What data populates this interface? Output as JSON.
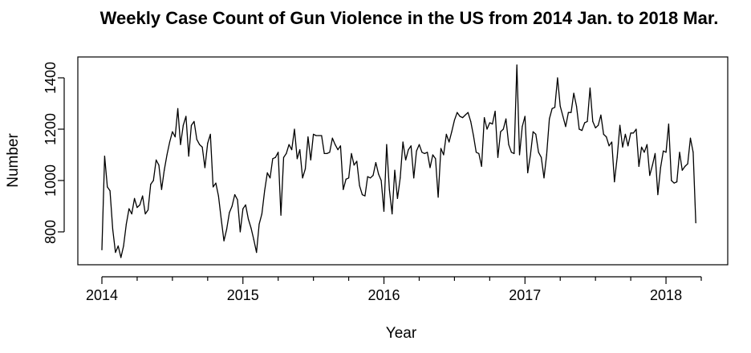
{
  "chart_data": {
    "type": "line",
    "title": "Weekly Case Count of Gun Violence in the US from 2014 Jan. to 2018 Mar.",
    "xlabel": "Year",
    "ylabel": "Number",
    "xlim": [
      2014.0,
      2018.25
    ],
    "ylim": [
      700,
      1450
    ],
    "x_ticks": [
      2014,
      2015,
      2016,
      2017,
      2018
    ],
    "x_tick_labels": [
      "2014",
      "2015",
      "2016",
      "2017",
      "2018"
    ],
    "y_ticks": [
      800,
      1000,
      1200,
      1400
    ],
    "y_tick_labels": [
      "800",
      "1000",
      "1200",
      "1400"
    ],
    "grid": false,
    "legend": "none",
    "line_color": "#000000",
    "series": [
      {
        "start": 2014.0,
        "step": 0.019230769,
        "values": [
          730,
          1095,
          975,
          960,
          810,
          720,
          745,
          700,
          745,
          830,
          890,
          870,
          930,
          895,
          905,
          940,
          870,
          885,
          985,
          1000,
          1080,
          1060,
          965,
          1040,
          1100,
          1150,
          1190,
          1170,
          1280,
          1140,
          1215,
          1250,
          1095,
          1215,
          1230,
          1160,
          1140,
          1130,
          1050,
          1145,
          1180,
          975,
          990,
          940,
          850,
          765,
          810,
          875,
          900,
          945,
          925,
          800,
          890,
          905,
          850,
          815,
          770,
          720,
          830,
          870,
          960,
          1030,
          1010,
          1085,
          1090,
          1110,
          865,
          1090,
          1105,
          1140,
          1120,
          1200,
          1085,
          1120,
          1010,
          1045,
          1170,
          1080,
          1180,
          1175,
          1175,
          1175,
          1105,
          1105,
          1110,
          1165,
          1140,
          1120,
          1135,
          965,
          1005,
          1010,
          1105,
          1060,
          1075,
          980,
          945,
          940,
          1015,
          1010,
          1020,
          1070,
          1025,
          1000,
          880,
          1140,
          965,
          870,
          1040,
          930,
          1010,
          1150,
          1080,
          1120,
          1135,
          1010,
          1115,
          1140,
          1110,
          1105,
          1110,
          1050,
          1100,
          1085,
          935,
          1125,
          1100,
          1180,
          1150,
          1190,
          1235,
          1265,
          1250,
          1245,
          1255,
          1265,
          1230,
          1175,
          1110,
          1105,
          1055,
          1245,
          1200,
          1225,
          1220,
          1270,
          1090,
          1190,
          1200,
          1240,
          1140,
          1110,
          1105,
          1450,
          1100,
          1210,
          1250,
          1030,
          1100,
          1190,
          1180,
          1110,
          1090,
          1010,
          1100,
          1240,
          1280,
          1285,
          1400,
          1290,
          1250,
          1210,
          1265,
          1265,
          1340,
          1290,
          1200,
          1195,
          1225,
          1230,
          1360,
          1230,
          1205,
          1215,
          1255,
          1180,
          1170,
          1135,
          1150,
          995,
          1090,
          1215,
          1130,
          1180,
          1135,
          1185,
          1185,
          1200,
          1055,
          1130,
          1110,
          1140,
          1020,
          1060,
          1105,
          945,
          1050,
          1115,
          1110,
          1220,
          1000,
          990,
          995,
          1110,
          1040,
          1055,
          1065,
          1165,
          1110,
          835
        ]
      }
    ]
  }
}
